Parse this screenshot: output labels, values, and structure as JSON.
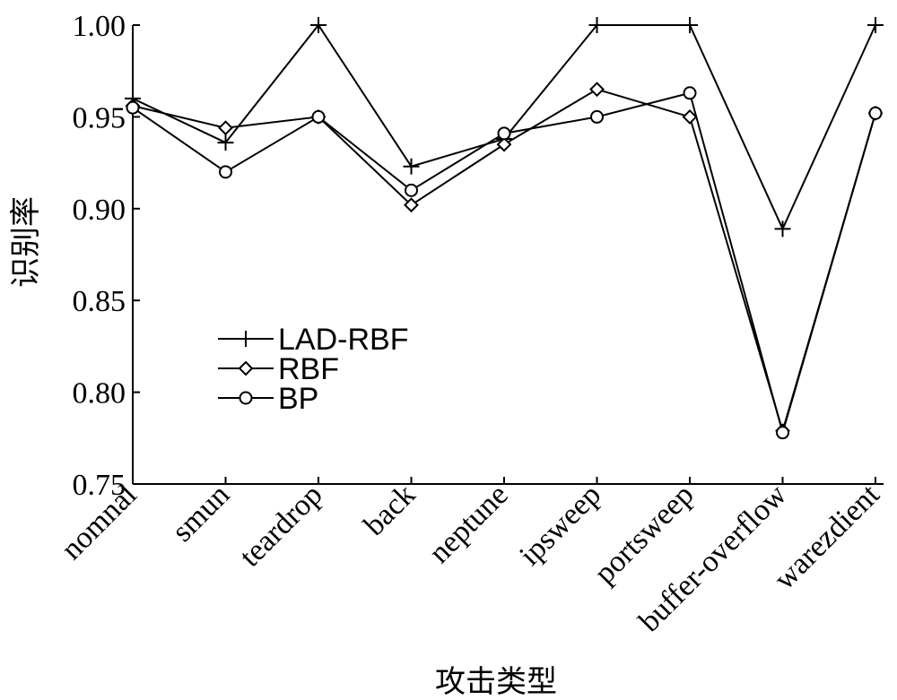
{
  "chart_data": {
    "type": "line",
    "title": "",
    "xlabel": "攻击类型",
    "ylabel": "识别率",
    "categories": [
      "nomnal",
      "smun",
      "teardrop",
      "back",
      "neptune",
      "ipsweep",
      "portsweep",
      "buffer-overflow",
      "warezdient"
    ],
    "ylim": [
      0.75,
      1.0
    ],
    "yticks": [
      "0.75",
      "0.80",
      "0.85",
      "0.90",
      "0.95",
      "1.00"
    ],
    "grid": false,
    "legend_position": "center-left",
    "series": [
      {
        "name": "LAD-RBF",
        "marker": "plus",
        "values": [
          0.96,
          0.936,
          1.0,
          0.923,
          0.938,
          1.0,
          1.0,
          0.889,
          1.0
        ]
      },
      {
        "name": "RBF",
        "marker": "diamond",
        "values": [
          0.956,
          0.944,
          0.95,
          0.902,
          0.935,
          0.965,
          0.95,
          0.779,
          0.952
        ]
      },
      {
        "name": "BP",
        "marker": "circle",
        "values": [
          0.955,
          0.92,
          0.95,
          0.91,
          0.941,
          0.95,
          0.963,
          0.778,
          0.952
        ]
      }
    ]
  }
}
